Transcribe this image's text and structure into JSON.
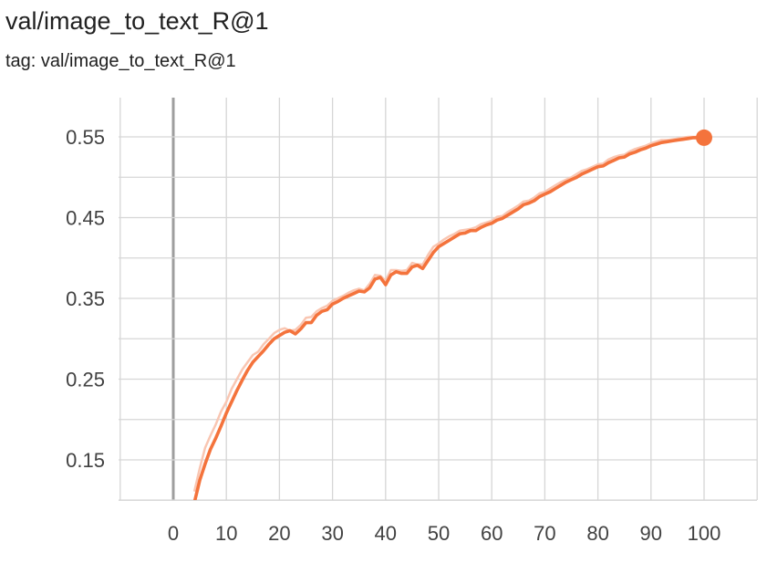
{
  "header": {
    "title": "val/image_to_text_R@1",
    "tag": "tag: val/image_to_text_R@1"
  },
  "colors": {
    "series": "#f4733c",
    "series_raw": "#f9c6b2",
    "grid": "#d6d6d6",
    "zero_axis": "#9e9e9e"
  },
  "chart_data": {
    "type": "line",
    "title": "val/image_to_text_R@1",
    "xlabel": "",
    "ylabel": "",
    "xlim": [
      -10,
      110
    ],
    "ylim": [
      0.1,
      0.55
    ],
    "x_ticks": [
      "0",
      "10",
      "20",
      "30",
      "40",
      "50",
      "60",
      "70",
      "80",
      "90",
      "100"
    ],
    "y_ticks": [
      "0.15",
      "0.25",
      "0.35",
      "0.45",
      "0.55"
    ],
    "grid": true,
    "series": [
      {
        "style": "smoothed",
        "x": [
          4,
          5,
          6,
          7,
          8,
          9,
          10,
          11,
          12,
          13,
          14,
          15,
          16,
          17,
          18,
          19,
          20,
          21,
          22,
          23,
          24,
          25,
          26,
          27,
          28,
          29,
          30,
          31,
          32,
          33,
          34,
          35,
          36,
          37,
          38,
          39,
          40,
          41,
          42,
          43,
          44,
          45,
          46,
          47,
          48,
          49,
          50,
          51,
          52,
          53,
          54,
          55,
          56,
          57,
          58,
          59,
          60,
          61,
          62,
          63,
          64,
          65,
          66,
          67,
          68,
          69,
          70,
          71,
          72,
          73,
          74,
          75,
          76,
          77,
          78,
          79,
          80,
          81,
          82,
          83,
          84,
          85,
          86,
          87,
          88,
          89,
          90,
          91,
          92,
          93,
          94,
          95,
          96,
          97,
          98,
          99,
          100
        ],
        "y": [
          0.098,
          0.125,
          0.145,
          0.163,
          0.177,
          0.192,
          0.208,
          0.222,
          0.236,
          0.249,
          0.261,
          0.271,
          0.278,
          0.285,
          0.293,
          0.3,
          0.304,
          0.308,
          0.31,
          0.306,
          0.312,
          0.32,
          0.32,
          0.329,
          0.334,
          0.336,
          0.343,
          0.346,
          0.35,
          0.353,
          0.356,
          0.359,
          0.358,
          0.363,
          0.374,
          0.376,
          0.367,
          0.379,
          0.383,
          0.381,
          0.381,
          0.389,
          0.391,
          0.387,
          0.397,
          0.407,
          0.414,
          0.418,
          0.422,
          0.426,
          0.43,
          0.431,
          0.434,
          0.434,
          0.438,
          0.441,
          0.443,
          0.447,
          0.449,
          0.453,
          0.457,
          0.461,
          0.466,
          0.468,
          0.471,
          0.476,
          0.479,
          0.482,
          0.486,
          0.49,
          0.494,
          0.497,
          0.5,
          0.504,
          0.507,
          0.51,
          0.513,
          0.514,
          0.518,
          0.521,
          0.524,
          0.525,
          0.529,
          0.531,
          0.534,
          0.536,
          0.539,
          0.541,
          0.543,
          0.544,
          0.545,
          0.546,
          0.547,
          0.548,
          0.549,
          0.549,
          0.549
        ]
      },
      {
        "style": "raw",
        "x": [
          4,
          5,
          6,
          7,
          8,
          9,
          10,
          11,
          12,
          13,
          14,
          15,
          16,
          17,
          18,
          19,
          20,
          21,
          22,
          23,
          24,
          25,
          26,
          27,
          28,
          29,
          30,
          31,
          32,
          33,
          34,
          35,
          36,
          37,
          38,
          39,
          40,
          41,
          42,
          43,
          44,
          45,
          46,
          47,
          48,
          49,
          50,
          51,
          52,
          53,
          54,
          55,
          56,
          57,
          58,
          59,
          60,
          61,
          62,
          63,
          64,
          65,
          66,
          67,
          68,
          69,
          70,
          71,
          72,
          73,
          74,
          75,
          76,
          77,
          78,
          79,
          80,
          81,
          82,
          83,
          84,
          85,
          86,
          87,
          88,
          89,
          90,
          91,
          92,
          93,
          94,
          95,
          96,
          97,
          98,
          99,
          100
        ],
        "y": [
          0.112,
          0.14,
          0.165,
          0.18,
          0.194,
          0.21,
          0.222,
          0.238,
          0.25,
          0.262,
          0.271,
          0.28,
          0.284,
          0.293,
          0.3,
          0.307,
          0.311,
          0.313,
          0.31,
          0.311,
          0.317,
          0.326,
          0.327,
          0.334,
          0.338,
          0.341,
          0.347,
          0.35,
          0.353,
          0.357,
          0.36,
          0.362,
          0.36,
          0.368,
          0.379,
          0.378,
          0.372,
          0.385,
          0.385,
          0.384,
          0.385,
          0.394,
          0.392,
          0.392,
          0.404,
          0.414,
          0.418,
          0.423,
          0.427,
          0.43,
          0.434,
          0.435,
          0.436,
          0.438,
          0.442,
          0.444,
          0.446,
          0.451,
          0.452,
          0.457,
          0.461,
          0.465,
          0.47,
          0.471,
          0.475,
          0.48,
          0.482,
          0.486,
          0.49,
          0.494,
          0.497,
          0.5,
          0.504,
          0.508,
          0.51,
          0.513,
          0.516,
          0.517,
          0.522,
          0.525,
          0.527,
          0.528,
          0.532,
          0.535,
          0.537,
          0.539,
          0.542,
          0.544,
          0.546,
          0.546,
          0.547,
          0.548,
          0.549,
          0.55,
          0.55,
          0.55,
          0.549
        ]
      }
    ],
    "marker": {
      "x": 100,
      "y": 0.549
    }
  }
}
